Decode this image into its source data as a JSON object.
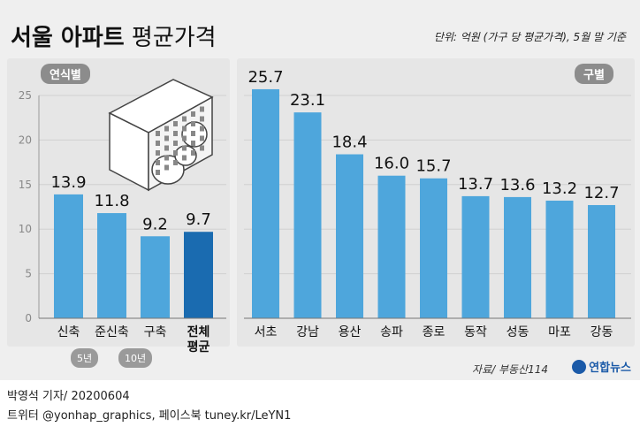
{
  "header": {
    "title_bold": "서울 아파트",
    "title_light": "평균가격",
    "unit": "단위: 억원 (가구 당 평균가격), 5월 말 기준"
  },
  "colors": {
    "bar": "#4ea6dc",
    "bar_highlight": "#1a6bb0",
    "axis": "#999999",
    "text": "#222222"
  },
  "chart_data": [
    {
      "type": "bar",
      "panel_label": "연식별",
      "categories": [
        "신축",
        "준신축",
        "구축",
        "전체 평균"
      ],
      "category_notes": [
        "",
        "5년",
        "10년",
        ""
      ],
      "values": [
        13.9,
        11.8,
        9.2,
        9.7
      ],
      "highlight": [
        false,
        false,
        false,
        true
      ],
      "ylim": [
        0,
        25
      ],
      "yticks": [
        0,
        5,
        10,
        15,
        20,
        25
      ],
      "icon": "apartment-moneybag-illustration"
    },
    {
      "type": "bar",
      "panel_label": "구별",
      "categories": [
        "서초",
        "강남",
        "용산",
        "송파",
        "종로",
        "동작",
        "성동",
        "마포",
        "강동"
      ],
      "values": [
        25.7,
        23.1,
        18.4,
        16.0,
        15.7,
        13.7,
        13.6,
        13.2,
        12.7
      ],
      "ylim": [
        0,
        25
      ]
    }
  ],
  "footer": {
    "source": "자료/ 부동산114",
    "logo": "연합뉴스",
    "byline": "박영석 기자/  20200604",
    "social": "트위터 @yonhap_graphics, 페이스북 tuney.kr/LeYN1"
  }
}
